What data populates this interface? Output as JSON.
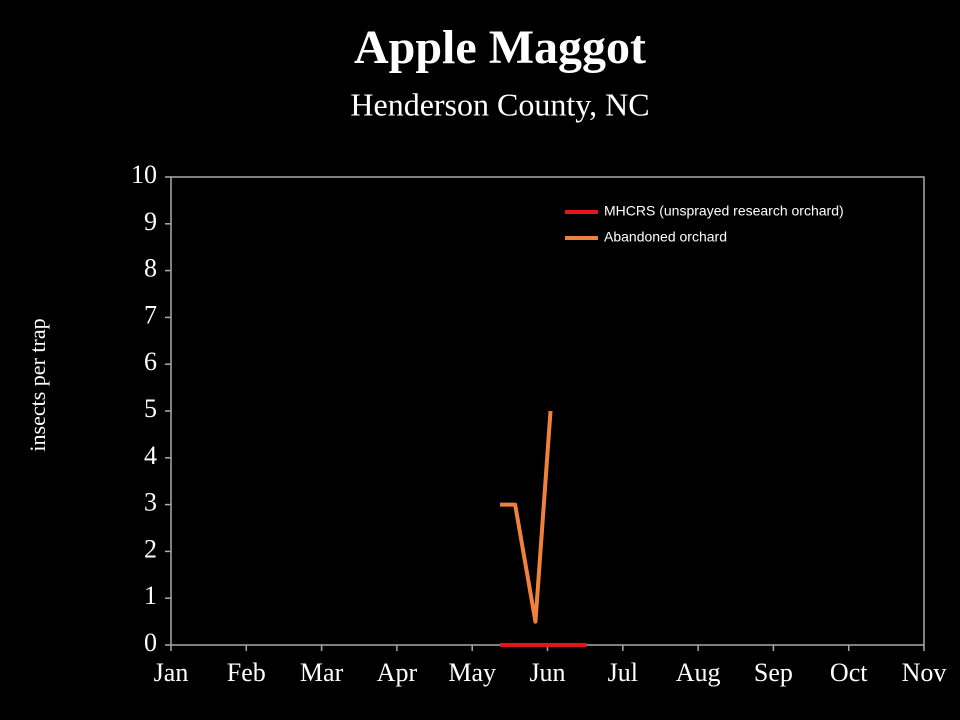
{
  "chart_data": {
    "type": "line",
    "title": "Apple Maggot",
    "subtitle": "Henderson County, NC",
    "y_label": "insects per trap",
    "xlim": [
      1,
      11
    ],
    "xticks": [
      {
        "value": 1,
        "label": "Jan"
      },
      {
        "value": 2,
        "label": "Feb"
      },
      {
        "value": 3,
        "label": "Mar"
      },
      {
        "value": 4,
        "label": "Apr"
      },
      {
        "value": 5,
        "label": "May"
      },
      {
        "value": 6,
        "label": "Jun"
      },
      {
        "value": 7,
        "label": "Jul"
      },
      {
        "value": 8,
        "label": "Aug"
      },
      {
        "value": 9,
        "label": "Sep"
      },
      {
        "value": 10,
        "label": "Oct"
      },
      {
        "value": 11,
        "label": "Nov"
      }
    ],
    "ylim": [
      0,
      10
    ],
    "yticks": [
      0,
      1,
      2,
      3,
      4,
      5,
      6,
      7,
      8,
      9,
      10
    ],
    "legend": "top-right",
    "series": [
      {
        "name": "MHCRS (unsprayed research orchard)",
        "color": "#e8141c",
        "x": [
          5.37,
          5.57,
          5.84,
          6.04,
          6.3,
          6.52
        ],
        "values": [
          0,
          0,
          0,
          0,
          0,
          0
        ]
      },
      {
        "name": "Abandoned orchard",
        "color": "#f0813c",
        "x": [
          5.37,
          5.57,
          5.84,
          6.04
        ],
        "values": [
          3,
          3,
          0.5,
          5
        ]
      }
    ]
  }
}
